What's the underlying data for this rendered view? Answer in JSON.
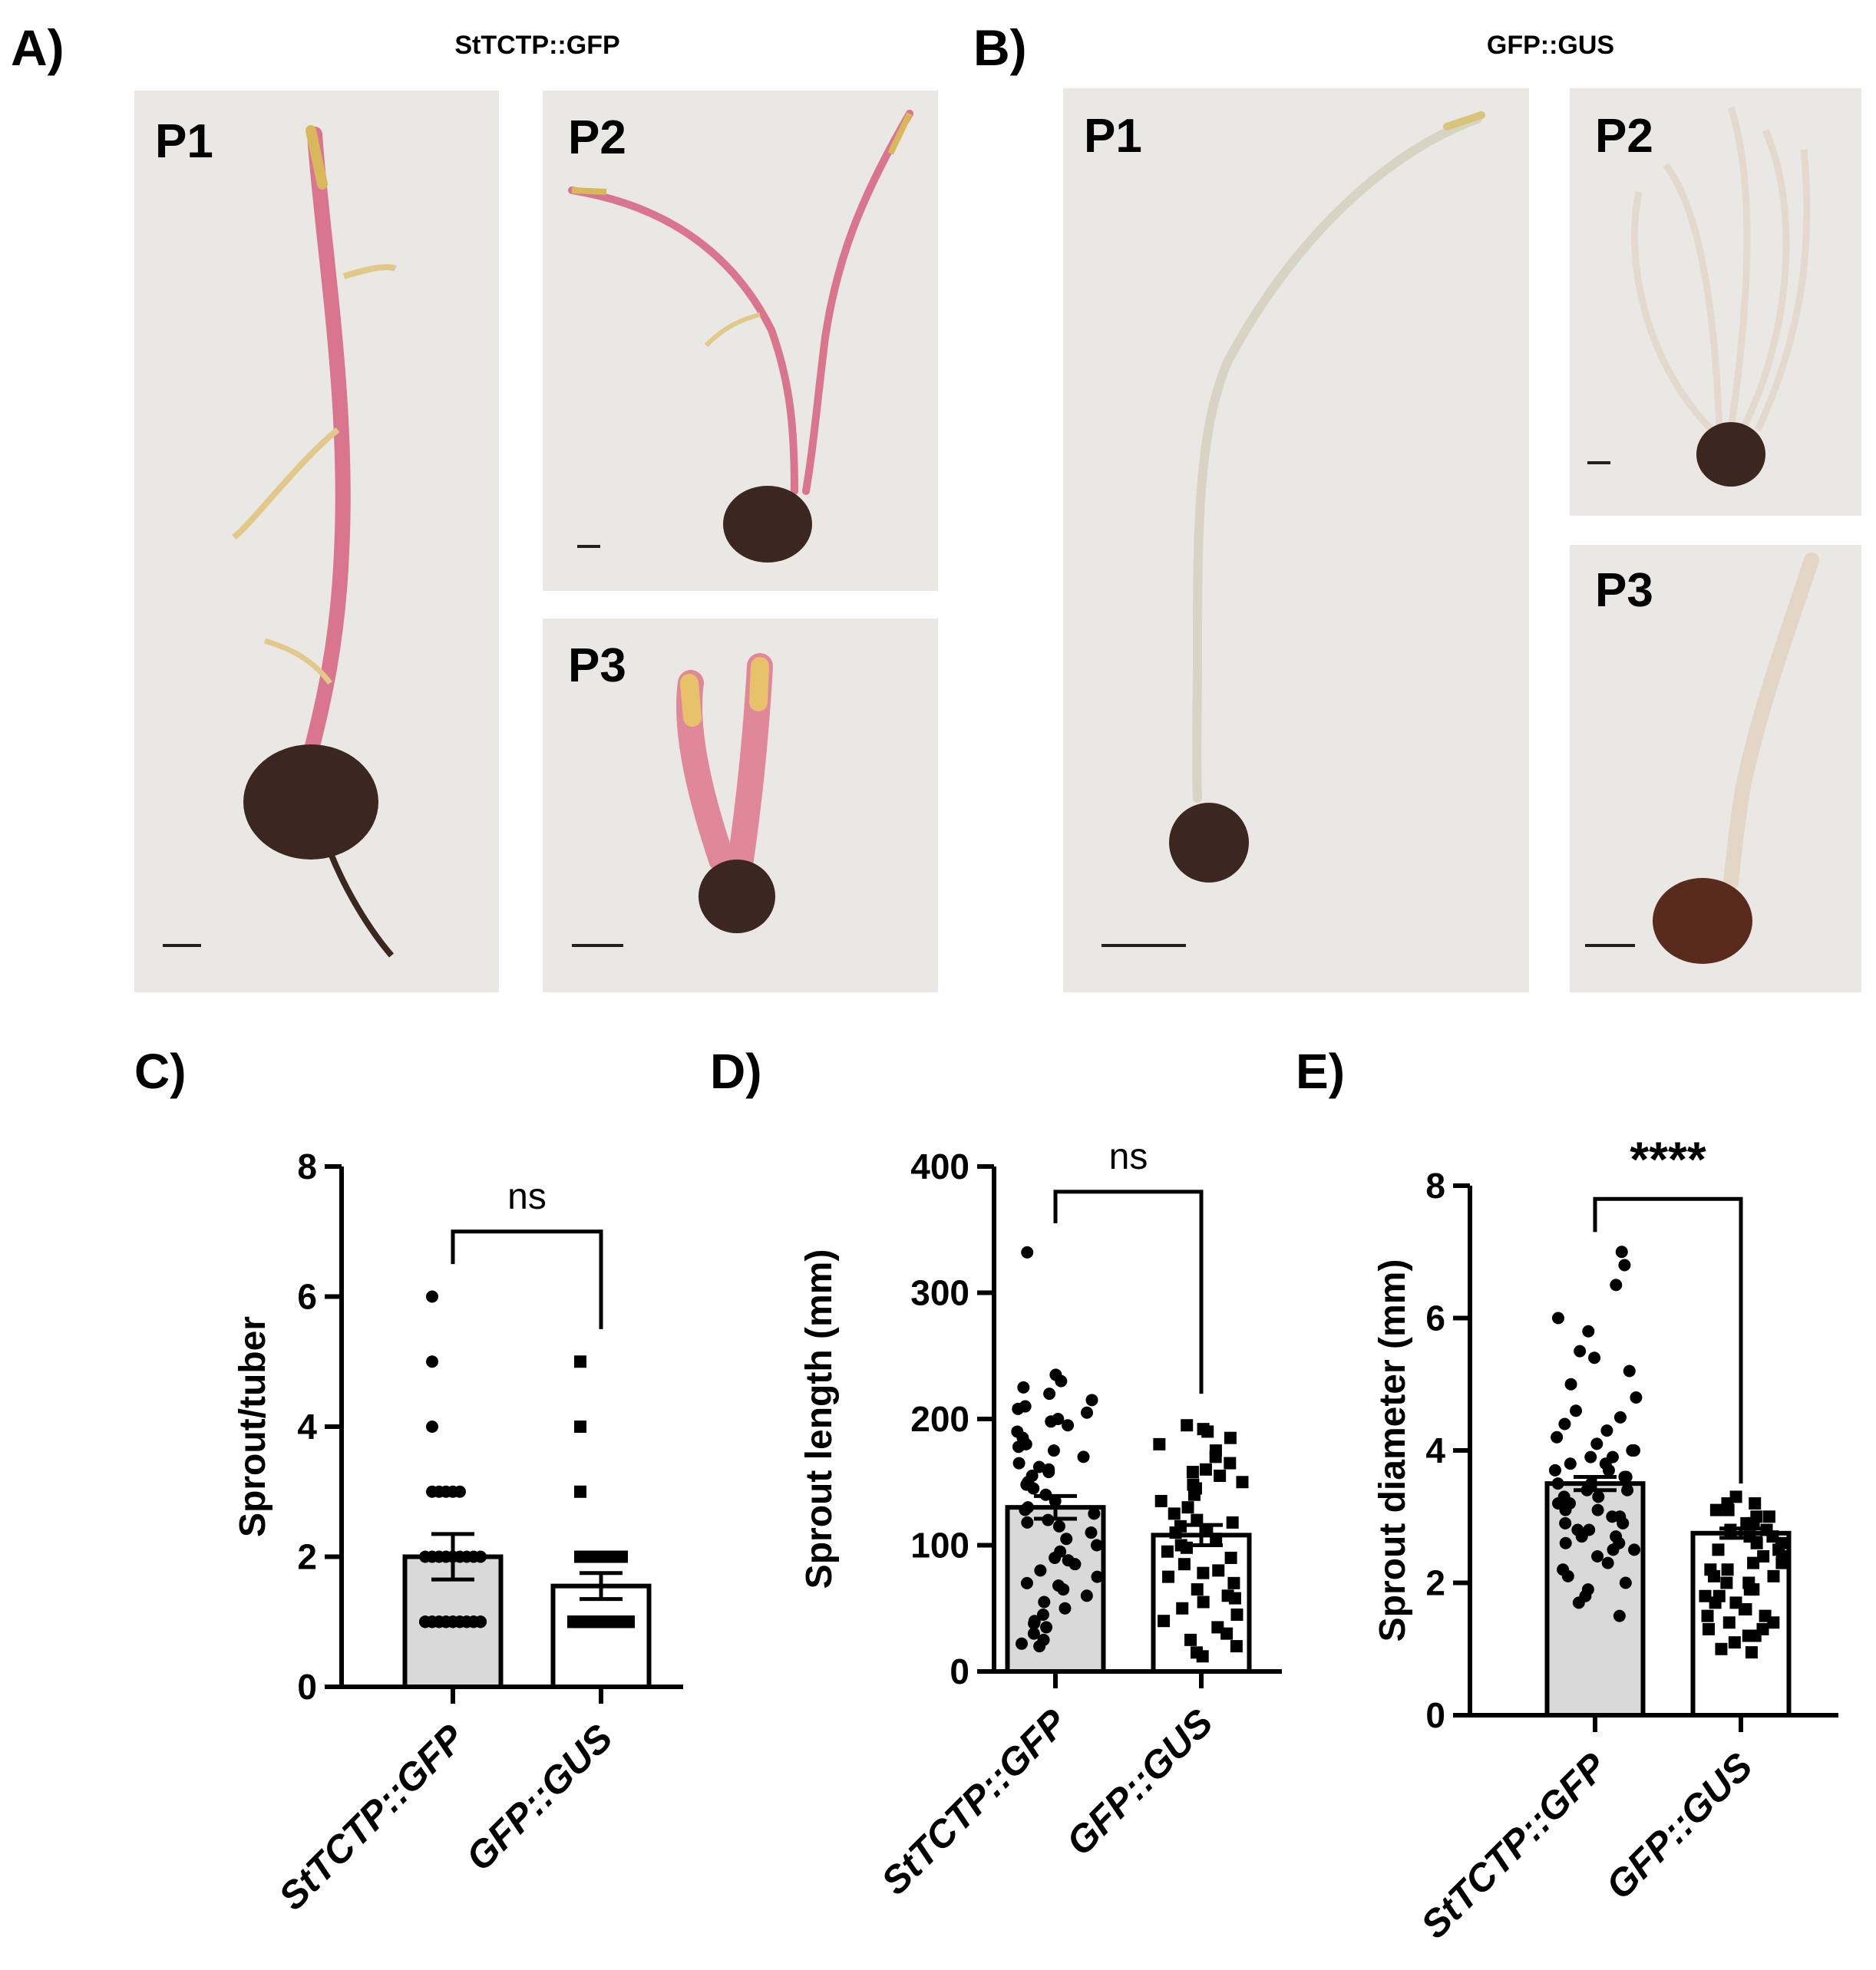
{
  "panels": {
    "A": {
      "letter": "A)",
      "title": "StTCTP::GFP",
      "photos": [
        {
          "label": "P1",
          "stem_color": "#d9758f",
          "tip_color": "#d8b85a"
        },
        {
          "label": "P2",
          "stem_color": "#d9758f",
          "tip_color": "#d8b85a"
        },
        {
          "label": "P3",
          "stem_color": "#e0889a",
          "tip_color": "#e7c26a"
        }
      ]
    },
    "B": {
      "letter": "B)",
      "title": "GFP::GUS",
      "photos": [
        {
          "label": "P1",
          "stem_color": "#d8d4c4",
          "tip_color": "#d9c57a"
        },
        {
          "label": "P2",
          "stem_color": "#e3d9cd",
          "tip_color": "#e6ded0"
        },
        {
          "label": "P3",
          "stem_color": "#e3d6c6",
          "tip_color": "#e6ded0"
        }
      ]
    },
    "C": {
      "letter": "C)"
    },
    "D": {
      "letter": "D)"
    },
    "E": {
      "letter": "E)"
    }
  },
  "colors": {
    "photo_background": "#e9e8e4",
    "tuber": "#3b2620",
    "bar_fill_1": "#d9d9d9",
    "bar_fill_2": "#ffffff",
    "ink": "#000000"
  },
  "chart_data": [
    {
      "id": "C",
      "type": "bar",
      "categories": [
        "StTCTP::GFP",
        "GFP::GUS"
      ],
      "values": [
        2.0,
        1.55
      ],
      "error": [
        0.35,
        0.2
      ],
      "ylabel": "Sprout/tuber",
      "ylim": [
        0,
        8
      ],
      "yticks": [
        0,
        2,
        4,
        6,
        8
      ],
      "significance": "ns",
      "points": [
        [
          1,
          1,
          1,
          1,
          1,
          1,
          1,
          1,
          1,
          1,
          1,
          1,
          1,
          1,
          1,
          1,
          1,
          1,
          1,
          1,
          1,
          1,
          1,
          1,
          1,
          1,
          1,
          1,
          1,
          1,
          1,
          1,
          1,
          1,
          1,
          1,
          1,
          1,
          1,
          1,
          2,
          2,
          2,
          2,
          2,
          2,
          2,
          2,
          2,
          3,
          3,
          3,
          3,
          3,
          4,
          5,
          6
        ],
        [
          1,
          1,
          1,
          1,
          1,
          1,
          1,
          1,
          1,
          1,
          1,
          1,
          1,
          1,
          1,
          1,
          1,
          1,
          1,
          1,
          1,
          1,
          1,
          1,
          1,
          1,
          1,
          1,
          1,
          1,
          1,
          1,
          1,
          1,
          1,
          1,
          2,
          2,
          2,
          2,
          2,
          2,
          2,
          3,
          4,
          5
        ]
      ]
    },
    {
      "id": "D",
      "type": "bar",
      "categories": [
        "StTCTP::GFP",
        "GFP::GUS"
      ],
      "values": [
        130,
        108
      ],
      "error": [
        9,
        8
      ],
      "ylabel": "Sprout length (mm)",
      "ylim": [
        0,
        400
      ],
      "yticks": [
        0,
        100,
        200,
        300,
        400
      ],
      "significance": "ns",
      "points": [
        [
          332,
          235,
          230,
          225,
          220,
          215,
          210,
          208,
          205,
          200,
          198,
          195,
          190,
          185,
          180,
          178,
          175,
          170,
          165,
          162,
          160,
          158,
          155,
          150,
          148,
          145,
          140,
          135,
          130,
          128,
          125,
          120,
          118,
          115,
          110,
          105,
          100,
          95,
          90,
          88,
          85,
          80,
          75,
          70,
          68,
          65,
          60,
          55,
          50,
          45,
          40,
          38,
          35,
          30,
          25,
          22,
          20
        ],
        [
          195,
          192,
          190,
          185,
          180,
          175,
          170,
          165,
          160,
          158,
          155,
          150,
          148,
          145,
          140,
          135,
          130,
          125,
          120,
          118,
          115,
          112,
          110,
          105,
          100,
          98,
          95,
          90,
          85,
          80,
          78,
          75,
          70,
          65,
          60,
          58,
          55,
          50,
          45,
          40,
          35,
          30,
          25,
          20,
          15,
          12
        ]
      ]
    },
    {
      "id": "E",
      "type": "bar",
      "categories": [
        "StTCTP::GFP",
        "GFP::GUS"
      ],
      "values": [
        3.5,
        2.75
      ],
      "error": [
        0.1,
        0.07
      ],
      "ylabel": "Sprout diameter (mm)",
      "ylim": [
        0,
        8
      ],
      "yticks": [
        0,
        2,
        4,
        6,
        8
      ],
      "significance": "****",
      "points": [
        [
          7.0,
          6.8,
          6.5,
          6.0,
          5.8,
          5.5,
          5.4,
          5.2,
          5.0,
          4.8,
          4.6,
          4.5,
          4.4,
          4.3,
          4.2,
          4.1,
          4.0,
          4.0,
          3.9,
          3.9,
          3.8,
          3.8,
          3.7,
          3.7,
          3.6,
          3.6,
          3.5,
          3.5,
          3.4,
          3.4,
          3.3,
          3.3,
          3.2,
          3.2,
          3.1,
          3.1,
          3.0,
          3.0,
          2.9,
          2.9,
          2.8,
          2.8,
          2.7,
          2.7,
          2.6,
          2.6,
          2.5,
          2.5,
          2.4,
          2.3,
          2.2,
          2.1,
          2.0,
          1.9,
          1.8,
          1.7,
          1.5
        ],
        [
          3.3,
          3.2,
          3.2,
          3.1,
          3.1,
          3.0,
          3.0,
          2.9,
          2.9,
          2.8,
          2.8,
          2.7,
          2.7,
          2.6,
          2.6,
          2.5,
          2.5,
          2.4,
          2.4,
          2.3,
          2.3,
          2.2,
          2.2,
          2.1,
          2.1,
          2.0,
          2.0,
          1.9,
          1.9,
          1.8,
          1.8,
          1.7,
          1.7,
          1.6,
          1.6,
          1.5,
          1.5,
          1.4,
          1.4,
          1.3,
          1.3,
          1.2,
          1.2,
          1.1,
          1.0,
          0.95
        ]
      ]
    }
  ]
}
